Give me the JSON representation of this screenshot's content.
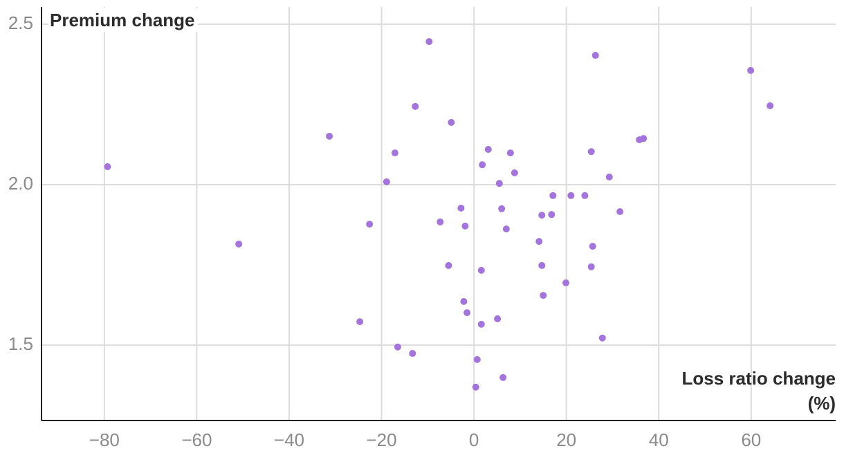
{
  "chart_data": {
    "type": "scatter",
    "ylabel": "Premium change",
    "xlabel": [
      "Loss ratio change",
      "(%)"
    ],
    "color": "#a374db",
    "grid": true,
    "xlim": [
      -93.6,
      78.3
    ],
    "ylim": [
      1.265,
      2.554
    ],
    "xticks": [
      {
        "value": -80,
        "label": "−80"
      },
      {
        "value": -60,
        "label": "−60"
      },
      {
        "value": -40,
        "label": "−40"
      },
      {
        "value": -20,
        "label": "−20"
      },
      0,
      20,
      40,
      60
    ],
    "yticks": [
      1.5,
      {
        "value": 2,
        "label": "2.0"
      },
      2.5
    ],
    "x": [
      -79.3,
      -50.9,
      -31.3,
      -22.6,
      -24.7,
      -18.9,
      -17.1,
      -16.5,
      -13.3,
      -12.7,
      -9.7,
      -7.3,
      -5.5,
      -4.9,
      -2.8,
      -2.2,
      -1.9,
      -1.5,
      0.4,
      0.7,
      1.6,
      1.6,
      1.8,
      3.1,
      5.1,
      5.5,
      6.0,
      6.3,
      7.0,
      7.9,
      8.8,
      14.1,
      14.7,
      14.7,
      15.0,
      16.8,
      17.1,
      19.9,
      21.0,
      24.0,
      25.4,
      25.4,
      25.7,
      26.3,
      27.8,
      29.3,
      31.6,
      35.8,
      36.7,
      59.9,
      64.1
    ],
    "values": [
      2.056,
      1.815,
      2.151,
      1.877,
      1.573,
      2.009,
      2.099,
      1.494,
      1.474,
      2.244,
      2.446,
      1.884,
      1.748,
      2.194,
      1.927,
      1.636,
      1.871,
      1.601,
      1.369,
      1.455,
      1.565,
      1.733,
      2.062,
      2.11,
      1.582,
      2.004,
      1.925,
      1.399,
      1.862,
      2.099,
      2.037,
      1.823,
      1.905,
      1.748,
      1.655,
      1.907,
      1.966,
      1.694,
      1.966,
      1.966,
      2.103,
      1.744,
      1.808,
      2.403,
      1.522,
      2.024,
      1.916,
      2.14,
      2.144,
      2.356,
      2.246
    ]
  }
}
